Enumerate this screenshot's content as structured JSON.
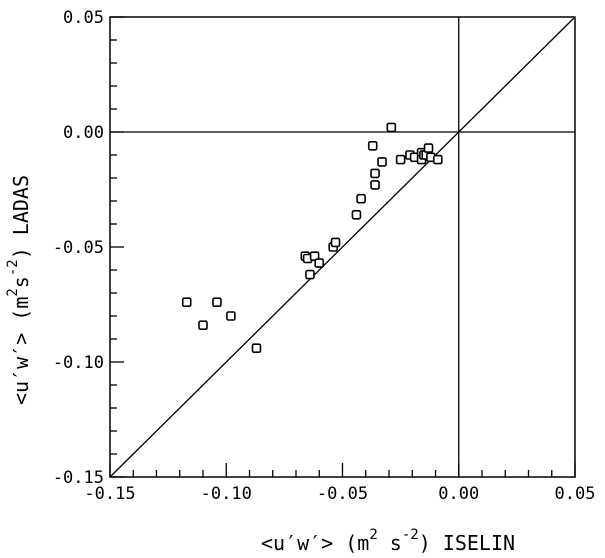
{
  "chart_data": {
    "type": "scatter",
    "xlabel": {
      "pre": "<u′w′> (m",
      "sup1": "2",
      "mid": " s",
      "sup2": "-2",
      "post": ") ISELIN"
    },
    "ylabel": {
      "pre": "<u′w′> (m",
      "sup1": "2",
      "mid": "s",
      "sup2": "-2",
      "post": ") LADAS"
    },
    "xlim": [
      -0.15,
      0.05
    ],
    "ylim": [
      -0.15,
      0.05
    ],
    "x_ticks": [
      {
        "value": -0.15,
        "label": "-0.15"
      },
      {
        "value": -0.1,
        "label": "-0.10"
      },
      {
        "value": -0.05,
        "label": "-0.05"
      },
      {
        "value": 0.0,
        "label": "0.00"
      },
      {
        "value": 0.05,
        "label": "0.05"
      }
    ],
    "y_ticks": [
      {
        "value": 0.05,
        "label": "0.05"
      },
      {
        "value": 0.0,
        "label": "0.00"
      },
      {
        "value": -0.05,
        "label": "-0.05"
      },
      {
        "value": -0.1,
        "label": "-0.10"
      },
      {
        "value": -0.15,
        "label": "-0.15"
      }
    ],
    "minor_tick_step": 0.01,
    "reference_lines": [
      "x=0",
      "y=0",
      "y=x"
    ],
    "marker": "open-square",
    "points": [
      {
        "x": -0.117,
        "y": -0.074
      },
      {
        "x": -0.11,
        "y": -0.084
      },
      {
        "x": -0.104,
        "y": -0.074
      },
      {
        "x": -0.098,
        "y": -0.08
      },
      {
        "x": -0.087,
        "y": -0.094
      },
      {
        "x": -0.066,
        "y": -0.054
      },
      {
        "x": -0.065,
        "y": -0.055
      },
      {
        "x": -0.064,
        "y": -0.062
      },
      {
        "x": -0.062,
        "y": -0.054
      },
      {
        "x": -0.06,
        "y": -0.057
      },
      {
        "x": -0.054,
        "y": -0.05
      },
      {
        "x": -0.053,
        "y": -0.048
      },
      {
        "x": -0.044,
        "y": -0.036
      },
      {
        "x": -0.042,
        "y": -0.029
      },
      {
        "x": -0.037,
        "y": -0.006
      },
      {
        "x": -0.036,
        "y": -0.023
      },
      {
        "x": -0.036,
        "y": -0.018
      },
      {
        "x": -0.033,
        "y": -0.013
      },
      {
        "x": -0.029,
        "y": 0.002
      },
      {
        "x": -0.025,
        "y": -0.012
      },
      {
        "x": -0.021,
        "y": -0.01
      },
      {
        "x": -0.019,
        "y": -0.011
      },
      {
        "x": -0.016,
        "y": -0.009
      },
      {
        "x": -0.016,
        "y": -0.012
      },
      {
        "x": -0.015,
        "y": -0.01
      },
      {
        "x": -0.014,
        "y": -0.01
      },
      {
        "x": -0.013,
        "y": -0.007
      },
      {
        "x": -0.012,
        "y": -0.011
      },
      {
        "x": -0.009,
        "y": -0.012
      }
    ]
  }
}
